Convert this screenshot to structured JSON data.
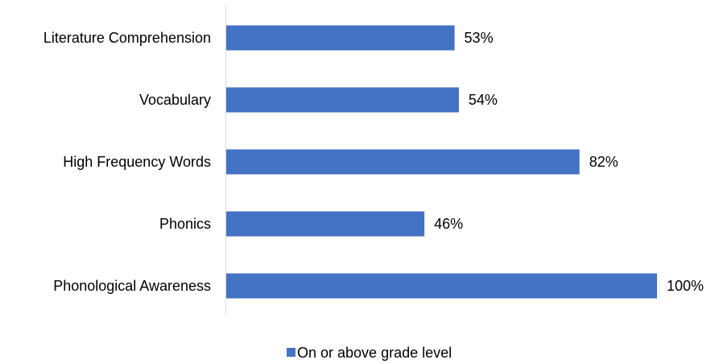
{
  "chart_data": {
    "type": "bar",
    "orientation": "horizontal",
    "categories": [
      "Literature Comprehension",
      "Vocabulary",
      "High Frequency Words",
      "Phonics",
      "Phonological Awareness"
    ],
    "series": [
      {
        "name": "On or above grade level",
        "values": [
          53,
          54,
          82,
          46,
          100
        ],
        "data_labels": [
          "53%",
          "54%",
          "82%",
          "46%",
          "100%"
        ],
        "color": "#4472C4"
      }
    ],
    "xlim": [
      0,
      100
    ],
    "grid": false,
    "legend": {
      "position": "bottom",
      "entries": [
        "On or above grade level"
      ]
    }
  }
}
